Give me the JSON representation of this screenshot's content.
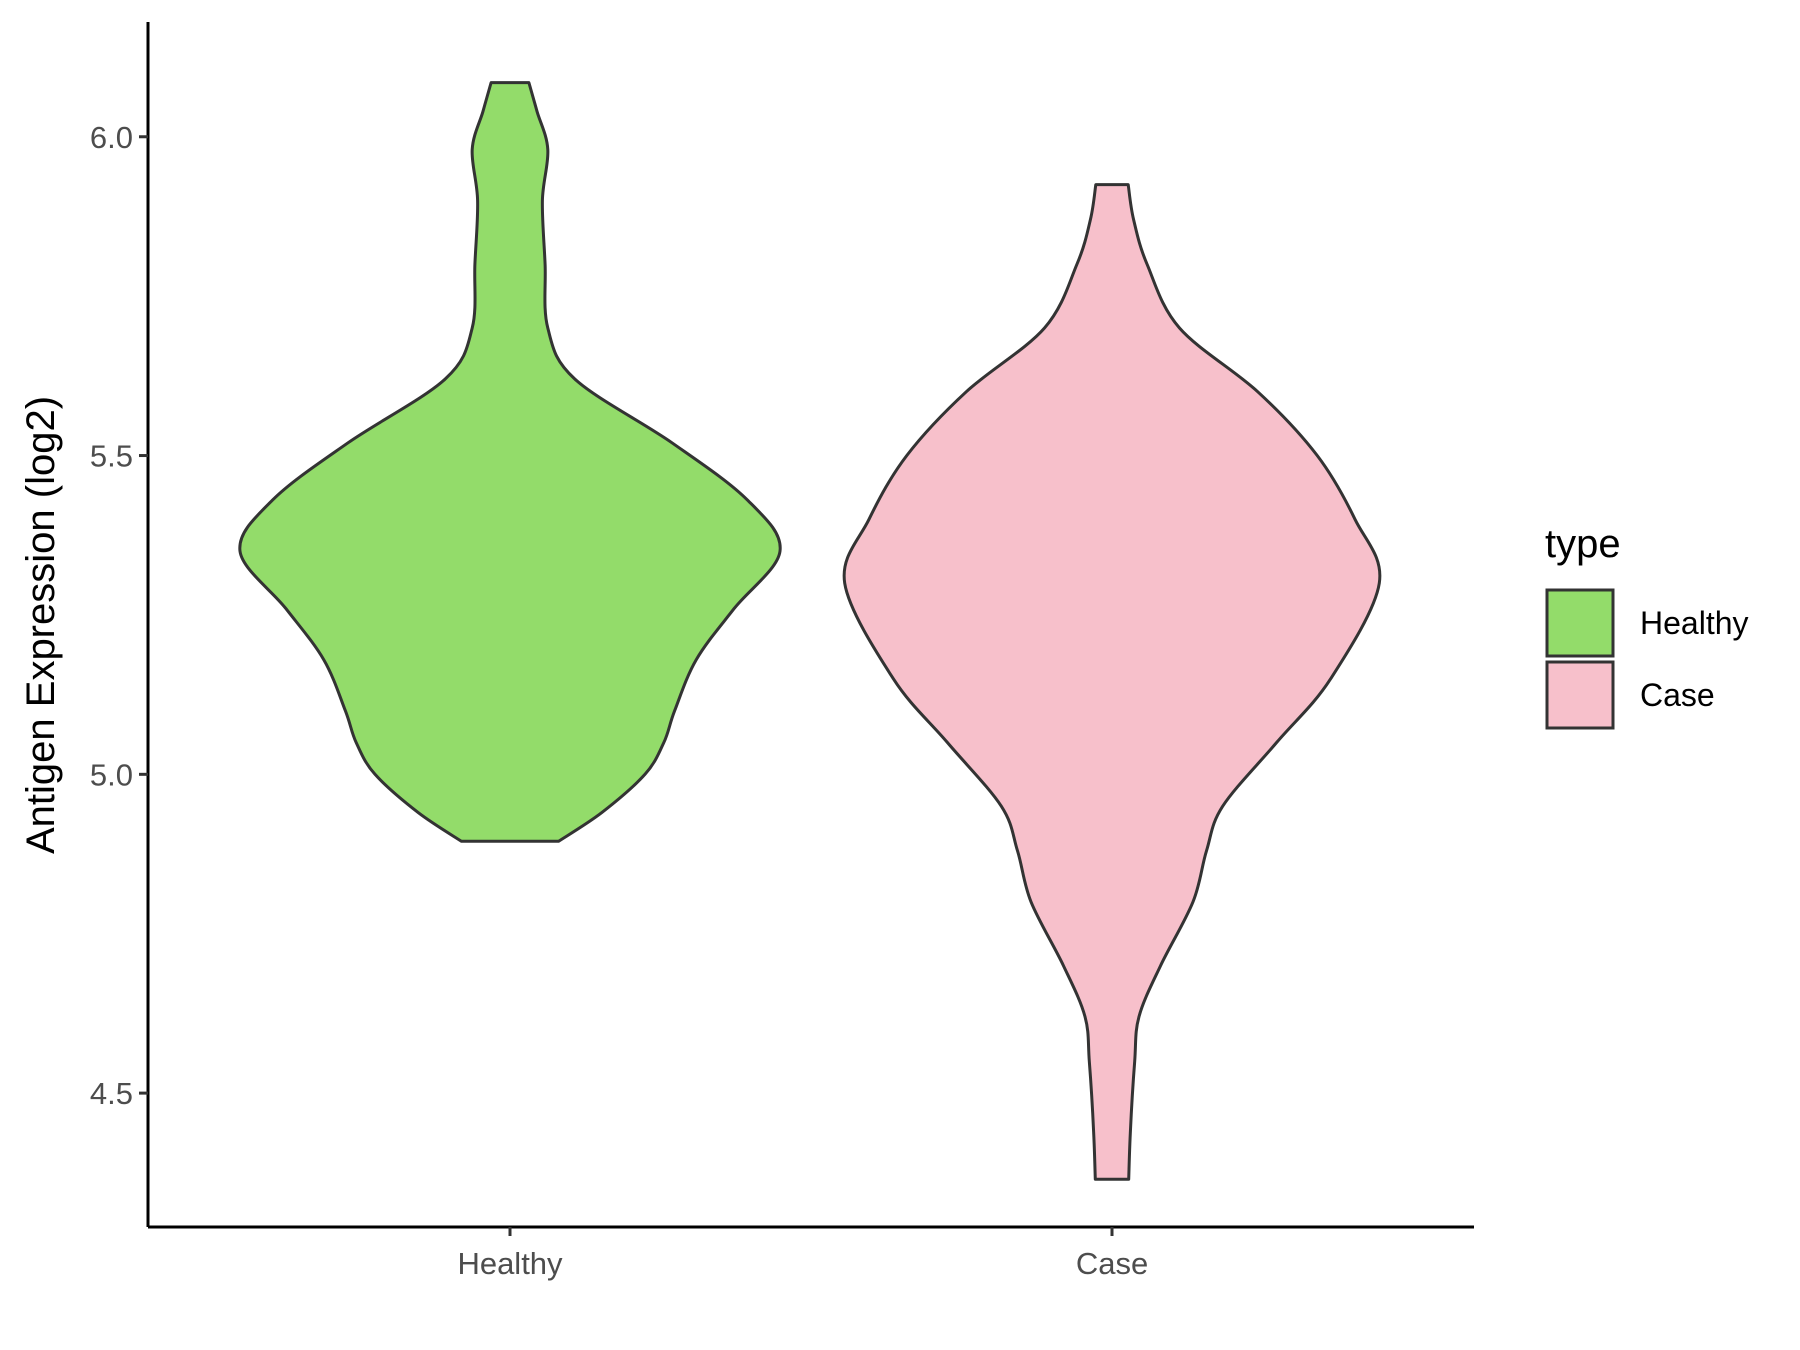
{
  "chart_data": {
    "type": "violin",
    "categories": [
      "Healthy",
      "Case"
    ],
    "ylabel": "Antigen Expression (log2)",
    "xlabel": "",
    "ylim": [
      4.29,
      6.18
    ],
    "yticks": [
      "4.5",
      "5.0",
      "5.5",
      "6.0"
    ],
    "grid": false,
    "legend": {
      "title": "type",
      "position": "right",
      "entries": [
        "Healthy",
        "Case"
      ]
    },
    "colors": {
      "Healthy": "#93dc6a",
      "Case": "#f7c0cb",
      "outline": "#333333"
    },
    "series": [
      {
        "name": "Healthy",
        "range": [
          4.895,
          6.085
        ],
        "density_profile": [
          [
            4.895,
            0.18
          ],
          [
            4.94,
            0.34
          ],
          [
            5.0,
            0.5
          ],
          [
            5.05,
            0.57
          ],
          [
            5.1,
            0.61
          ],
          [
            5.18,
            0.69
          ],
          [
            5.26,
            0.83
          ],
          [
            5.35,
            1.0
          ],
          [
            5.43,
            0.88
          ],
          [
            5.52,
            0.6
          ],
          [
            5.62,
            0.24
          ],
          [
            5.7,
            0.14
          ],
          [
            5.8,
            0.13
          ],
          [
            5.9,
            0.12
          ],
          [
            5.98,
            0.14
          ],
          [
            6.04,
            0.1
          ],
          [
            6.085,
            0.07
          ]
        ]
      },
      {
        "name": "Case",
        "range": [
          4.365,
          5.925
        ],
        "density_profile": [
          [
            4.365,
            0.062
          ],
          [
            4.44,
            0.068
          ],
          [
            4.55,
            0.084
          ],
          [
            4.62,
            0.1
          ],
          [
            4.7,
            0.18
          ],
          [
            4.8,
            0.3
          ],
          [
            4.88,
            0.35
          ],
          [
            4.95,
            0.41
          ],
          [
            5.05,
            0.61
          ],
          [
            5.15,
            0.81
          ],
          [
            5.3,
            0.99
          ],
          [
            5.4,
            0.9
          ],
          [
            5.5,
            0.76
          ],
          [
            5.6,
            0.54
          ],
          [
            5.7,
            0.25
          ],
          [
            5.8,
            0.13
          ],
          [
            5.87,
            0.08
          ],
          [
            5.925,
            0.06
          ]
        ]
      }
    ]
  }
}
